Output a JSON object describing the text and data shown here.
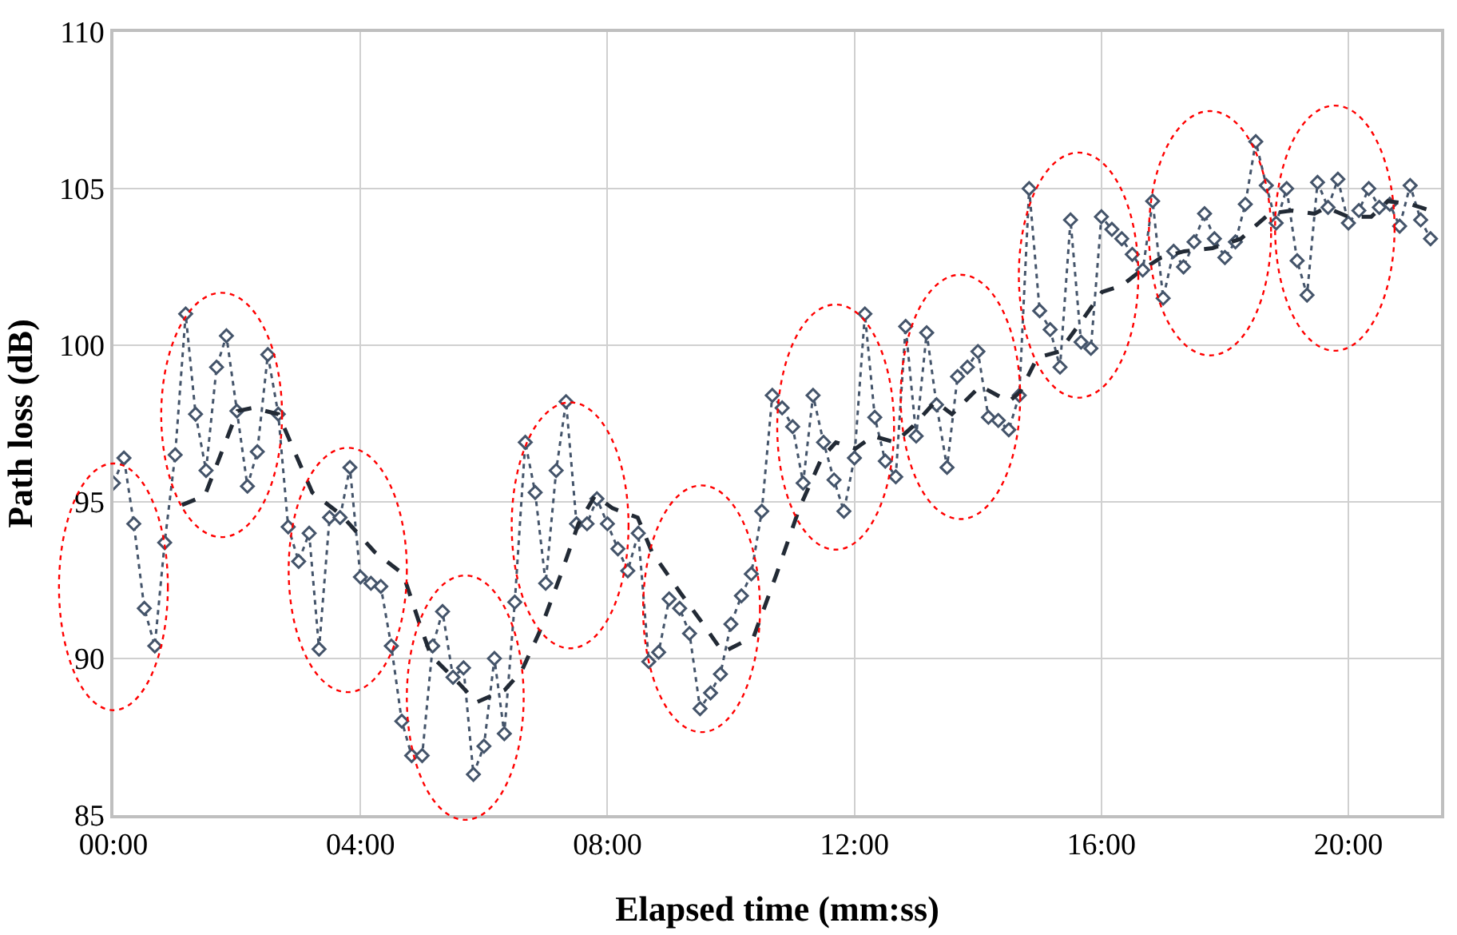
{
  "chart_data": {
    "type": "line",
    "xlabel": "Elapsed time (mm:ss)",
    "ylabel": "Path loss (dB)",
    "xlim": [
      0,
      21.5
    ],
    "xticks": [
      {
        "value": 0,
        "label": "00:00"
      },
      {
        "value": 4,
        "label": "04:00"
      },
      {
        "value": 8,
        "label": "08:00"
      },
      {
        "value": 12,
        "label": "12:00"
      },
      {
        "value": 16,
        "label": "16:00"
      },
      {
        "value": 20,
        "label": "20:00"
      }
    ],
    "ylim": [
      85,
      110
    ],
    "yticks": [
      85,
      90,
      95,
      100,
      105,
      110
    ],
    "grid": true,
    "series": [
      {
        "color": "#44546a",
        "marker": "diamond",
        "line_style": "dotted",
        "x": [
          0,
          0.17,
          0.33,
          0.5,
          0.67,
          0.83,
          1,
          1.17,
          1.33,
          1.5,
          1.67,
          1.83,
          2,
          2.17,
          2.33,
          2.5,
          2.67,
          2.83,
          3,
          3.17,
          3.33,
          3.5,
          3.67,
          3.83,
          4,
          4.17,
          4.33,
          4.5,
          4.67,
          4.83,
          5,
          5.17,
          5.33,
          5.5,
          5.67,
          5.83,
          6,
          6.17,
          6.33,
          6.5,
          6.67,
          6.83,
          7,
          7.17,
          7.33,
          7.5,
          7.67,
          7.83,
          8,
          8.17,
          8.33,
          8.5,
          8.67,
          8.83,
          9,
          9.17,
          9.33,
          9.5,
          9.67,
          9.83,
          10,
          10.17,
          10.33,
          10.5,
          10.67,
          10.83,
          11,
          11.17,
          11.33,
          11.5,
          11.67,
          11.83,
          12,
          12.17,
          12.33,
          12.5,
          12.67,
          12.83,
          13,
          13.17,
          13.33,
          13.5,
          13.67,
          13.83,
          14,
          14.17,
          14.33,
          14.5,
          14.67,
          14.83,
          15,
          15.17,
          15.33,
          15.5,
          15.67,
          15.83,
          16,
          16.17,
          16.33,
          16.5,
          16.67,
          16.83,
          17,
          17.17,
          17.33,
          17.5,
          17.67,
          17.83,
          18,
          18.17,
          18.33,
          18.5,
          18.67,
          18.83,
          19,
          19.17,
          19.33,
          19.5,
          19.67,
          19.83,
          20,
          20.17,
          20.33,
          20.5,
          20.67,
          20.83,
          21,
          21.17,
          21.33
        ],
        "values": [
          95.6,
          96.4,
          94.3,
          91.6,
          90.4,
          93.7,
          96.5,
          101.0,
          97.8,
          96.0,
          99.3,
          100.3,
          97.9,
          95.5,
          96.6,
          99.7,
          97.8,
          94.2,
          93.1,
          94.0,
          90.3,
          94.5,
          94.5,
          96.1,
          92.6,
          92.4,
          92.3,
          90.4,
          88.0,
          86.9,
          86.9,
          90.4,
          91.5,
          89.4,
          89.7,
          86.3,
          87.2,
          90.0,
          87.6,
          91.8,
          96.9,
          95.3,
          92.4,
          96.0,
          98.2,
          94.3,
          94.3,
          95.1,
          94.3,
          93.5,
          92.8,
          94.0,
          89.9,
          90.2,
          91.9,
          91.6,
          90.8,
          88.4,
          88.9,
          89.5,
          91.1,
          92.0,
          92.7,
          94.7,
          98.4,
          98.0,
          97.4,
          95.6,
          98.4,
          96.9,
          95.7,
          94.7,
          96.4,
          101.0,
          97.7,
          96.3,
          95.8,
          100.6,
          97.1,
          100.4,
          98.1,
          96.1,
          99.0,
          99.3,
          99.8,
          97.7,
          97.6,
          97.3,
          98.4,
          105.0,
          101.1,
          100.5,
          99.3,
          104.0,
          100.1,
          99.9,
          104.1,
          103.7,
          103.4,
          102.9,
          102.4,
          104.6,
          101.5,
          103.0,
          102.5,
          103.3,
          104.2,
          103.4,
          102.8,
          103.3,
          104.5,
          106.5,
          105.1,
          103.9,
          105.0,
          102.7,
          101.6,
          105.2,
          104.4,
          105.3,
          103.9,
          104.3,
          105.0,
          104.4,
          104.5,
          103.8,
          105.1,
          104.0,
          103.4
        ]
      },
      {
        "color": "#222a35",
        "marker": "none",
        "line_style": "dashed",
        "x": [
          1.11,
          1.48,
          2.01,
          2.26,
          2.67,
          3.22,
          3.68,
          4.23,
          4.69,
          4.96,
          5.14,
          5.6,
          5.88,
          6.34,
          6.61,
          6.89,
          7.25,
          7.53,
          7.8,
          8.08,
          8.49,
          8.72,
          9.18,
          9.55,
          9.87,
          10.37,
          10.74,
          11.11,
          11.47,
          11.7,
          12.02,
          12.3,
          12.66,
          12.94,
          13.31,
          13.58,
          14.04,
          14.5,
          14.68,
          14.96,
          15.32,
          15.69,
          16.01,
          16.33,
          16.65,
          16.97,
          17.34,
          17.8,
          18.26,
          18.72,
          19.08,
          19.45,
          19.64,
          20.0,
          20.37,
          20.64,
          21.01,
          21.33
        ],
        "values": [
          94.9,
          95.2,
          97.9,
          98.0,
          97.8,
          95.3,
          94.6,
          93.4,
          92.7,
          91.1,
          90.1,
          89.2,
          88.6,
          89.0,
          89.6,
          90.8,
          92.7,
          94.3,
          95.2,
          94.8,
          94.5,
          93.4,
          92.1,
          91.1,
          90.2,
          90.7,
          92.7,
          94.8,
          96.4,
          96.9,
          96.7,
          97.1,
          96.9,
          97.4,
          98.2,
          97.8,
          98.7,
          98.2,
          98.5,
          99.6,
          99.8,
          100.8,
          101.7,
          101.9,
          102.4,
          102.8,
          103.0,
          103.1,
          103.4,
          104.2,
          104.3,
          104.2,
          104.4,
          104.1,
          104.1,
          104.6,
          104.5,
          104.3
        ]
      }
    ]
  }
}
